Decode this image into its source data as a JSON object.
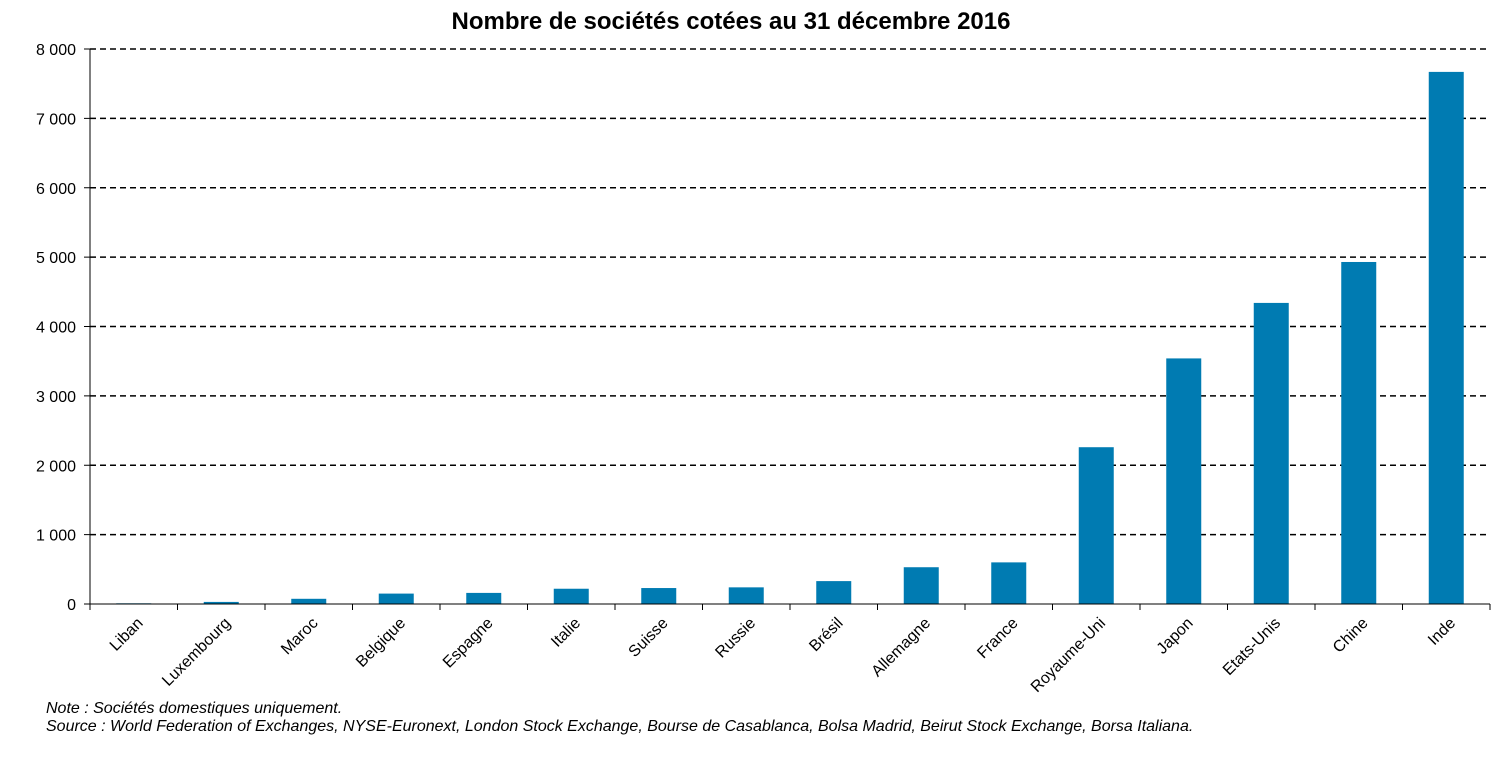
{
  "chart_data": {
    "type": "bar",
    "title": "Nombre de sociétés cotées au 31 décembre 2016",
    "xlabel": "",
    "ylabel": "",
    "categories": [
      "Liban",
      "Luxembourg",
      "Maroc",
      "Belgique",
      "Espagne",
      "Italie",
      "Suisse",
      "Russie",
      "Brésil",
      "Allemagne",
      "France",
      "Royaume-Uni",
      "Japon",
      "Etats-Unis",
      "Chine",
      "Inde"
    ],
    "values": [
      10,
      30,
      75,
      150,
      160,
      220,
      230,
      240,
      330,
      530,
      600,
      2260,
      3540,
      4340,
      4930,
      7670
    ],
    "ylim": [
      0,
      8000
    ],
    "yticks": [
      0,
      1000,
      2000,
      3000,
      4000,
      5000,
      6000,
      7000,
      8000
    ],
    "ytick_labels": [
      "0",
      "1 000",
      "2 000",
      "3 000",
      "4 000",
      "5 000",
      "6 000",
      "7 000",
      "8 000"
    ],
    "grid": true,
    "grid_style": "dashed",
    "bar_color": "#007BB2",
    "legend": "none"
  },
  "notes": {
    "note": "Note : Sociétés domestiques uniquement.",
    "source": "Source : World Federation of Exchanges, NYSE-Euronext, London Stock Exchange, Bourse de Casablanca, Bolsa Madrid, Beirut Stock Exchange, Borsa Italiana."
  }
}
